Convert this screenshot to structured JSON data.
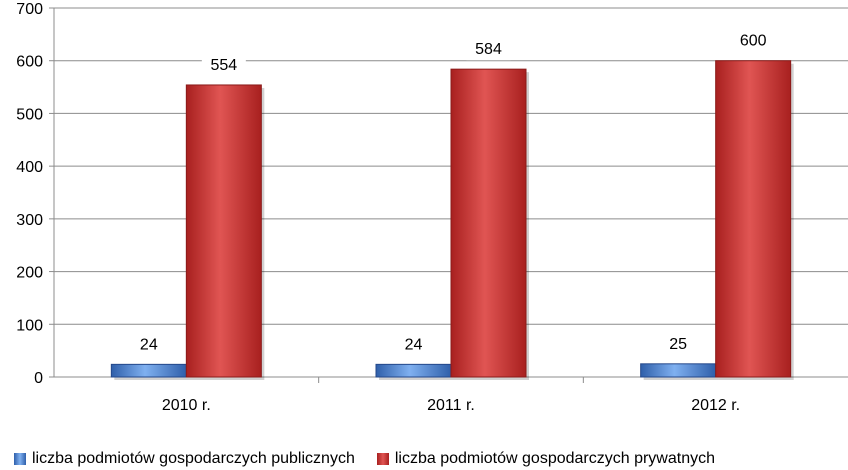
{
  "chart_data": {
    "type": "bar",
    "categories": [
      "2010 r.",
      "2011 r.",
      "2012 r."
    ],
    "series": [
      {
        "name": "liczba podmiotów gospodarczych publicznych",
        "values": [
          24,
          24,
          25
        ],
        "color": "#4a7fd4"
      },
      {
        "name": "liczba podmiotów gospodarczych prywatnych",
        "values": [
          554,
          584,
          600
        ],
        "color": "#c8302f"
      }
    ],
    "ylim": [
      0,
      700
    ],
    "yticks": [
      0,
      100,
      200,
      300,
      400,
      500,
      600,
      700
    ],
    "grid": true,
    "legend_position": "bottom",
    "data_labels": true
  }
}
